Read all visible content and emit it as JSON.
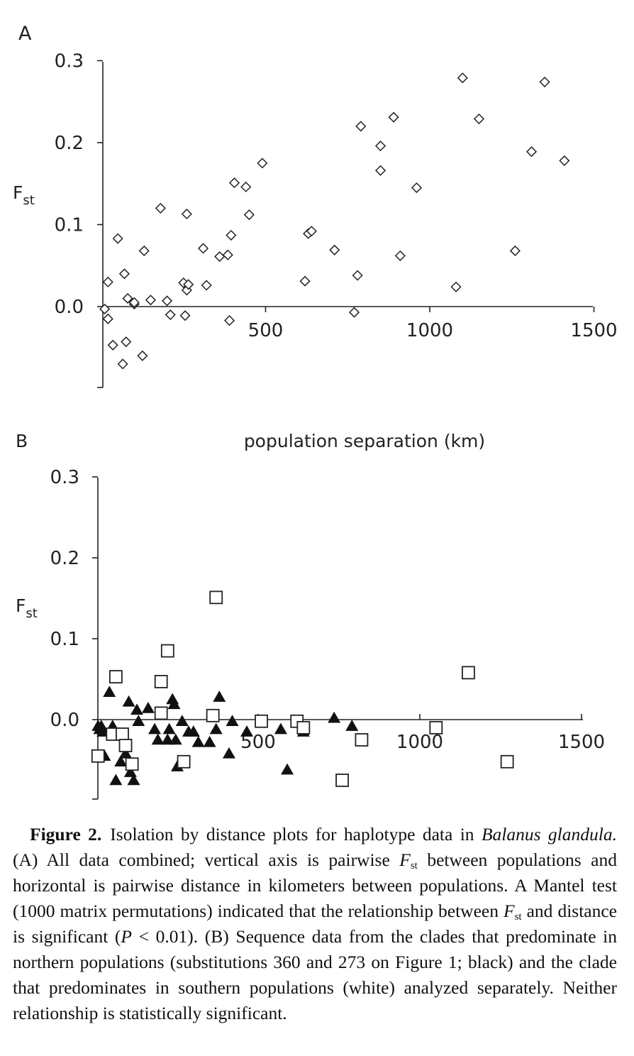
{
  "chart_data": [
    {
      "type": "scatter",
      "panel_label": "A",
      "ylabel": "F",
      "ylabel_sub": "st",
      "xlabel": "population separation (km)",
      "xlim": [
        -40,
        1500
      ],
      "ylim": [
        -0.1,
        0.3
      ],
      "yticks": [
        "0.3",
        "0.2",
        "0.1",
        "0.0"
      ],
      "xticks": [
        "500",
        "1000",
        "1500"
      ],
      "series": [
        {
          "marker": "diamond",
          "points": [
            [
              10,
              -0.003
            ],
            [
              20,
              -0.015
            ],
            [
              20,
              0.03
            ],
            [
              35,
              -0.047
            ],
            [
              50,
              0.083
            ],
            [
              65,
              -0.07
            ],
            [
              70,
              0.04
            ],
            [
              75,
              -0.043
            ],
            [
              80,
              0.01
            ],
            [
              100,
              0.003
            ],
            [
              100,
              0.005
            ],
            [
              125,
              -0.06
            ],
            [
              130,
              0.068
            ],
            [
              150,
              0.008
            ],
            [
              180,
              0.12
            ],
            [
              200,
              0.007
            ],
            [
              210,
              -0.01
            ],
            [
              250,
              0.029
            ],
            [
              255,
              -0.011
            ],
            [
              260,
              0.113
            ],
            [
              260,
              0.02
            ],
            [
              265,
              0.027
            ],
            [
              310,
              0.071
            ],
            [
              320,
              0.026
            ],
            [
              360,
              0.061
            ],
            [
              385,
              0.063
            ],
            [
              390,
              -0.017
            ],
            [
              395,
              0.087
            ],
            [
              405,
              0.151
            ],
            [
              440,
              0.146
            ],
            [
              450,
              0.112
            ],
            [
              490,
              0.175
            ],
            [
              620,
              0.031
            ],
            [
              630,
              0.089
            ],
            [
              640,
              0.092
            ],
            [
              710,
              0.069
            ],
            [
              770,
              -0.007
            ],
            [
              780,
              0.038
            ],
            [
              790,
              0.22
            ],
            [
              850,
              0.166
            ],
            [
              850,
              0.196
            ],
            [
              890,
              0.231
            ],
            [
              910,
              0.062
            ],
            [
              960,
              0.145
            ],
            [
              1080,
              0.024
            ],
            [
              1100,
              0.279
            ],
            [
              1150,
              0.229
            ],
            [
              1260,
              0.068
            ],
            [
              1310,
              0.189
            ],
            [
              1350,
              0.274
            ],
            [
              1410,
              0.178
            ]
          ]
        }
      ]
    },
    {
      "type": "scatter",
      "panel_label": "B",
      "ylabel": "F",
      "ylabel_sub": "st",
      "xlim": [
        -40,
        1500
      ],
      "ylim": [
        -0.1,
        0.3
      ],
      "yticks": [
        "0.3",
        "0.2",
        "0.1",
        "0.0"
      ],
      "xticks": [
        "500",
        "1000",
        "1500"
      ],
      "series": [
        {
          "name": "northern clades (black)",
          "marker": "filled-triangle",
          "points": [
            [
              5,
              -0.008
            ],
            [
              10,
              -0.012
            ],
            [
              15,
              -0.008
            ],
            [
              20,
              -0.015
            ],
            [
              25,
              -0.045
            ],
            [
              40,
              0.034
            ],
            [
              50,
              -0.008
            ],
            [
              60,
              -0.075
            ],
            [
              75,
              -0.052
            ],
            [
              90,
              -0.042
            ],
            [
              100,
              0.022
            ],
            [
              105,
              -0.065
            ],
            [
              115,
              -0.075
            ],
            [
              125,
              0.012
            ],
            [
              130,
              -0.002
            ],
            [
              160,
              0.014
            ],
            [
              180,
              -0.012
            ],
            [
              190,
              -0.025
            ],
            [
              220,
              -0.025
            ],
            [
              225,
              -0.012
            ],
            [
              235,
              0.025
            ],
            [
              240,
              0.019
            ],
            [
              245,
              -0.025
            ],
            [
              250,
              -0.058
            ],
            [
              265,
              -0.002
            ],
            [
              285,
              -0.015
            ],
            [
              300,
              -0.015
            ],
            [
              315,
              -0.028
            ],
            [
              350,
              -0.028
            ],
            [
              370,
              -0.012
            ],
            [
              380,
              0.028
            ],
            [
              410,
              -0.042
            ],
            [
              420,
              -0.002
            ],
            [
              465,
              -0.015
            ],
            [
              570,
              -0.012
            ],
            [
              590,
              -0.062
            ],
            [
              640,
              -0.015
            ],
            [
              735,
              0.002
            ],
            [
              790,
              -0.008
            ]
          ]
        },
        {
          "name": "southern clade (white)",
          "marker": "open-square",
          "points": [
            [
              5,
              -0.045
            ],
            [
              50,
              -0.018
            ],
            [
              60,
              0.053
            ],
            [
              80,
              -0.018
            ],
            [
              90,
              -0.032
            ],
            [
              110,
              -0.055
            ],
            [
              200,
              0.047
            ],
            [
              200,
              0.008
            ],
            [
              220,
              0.085
            ],
            [
              270,
              -0.052
            ],
            [
              360,
              0.005
            ],
            [
              370,
              0.151
            ],
            [
              510,
              -0.002
            ],
            [
              620,
              -0.002
            ],
            [
              640,
              -0.01
            ],
            [
              760,
              -0.075
            ],
            [
              820,
              -0.025
            ],
            [
              1050,
              -0.01
            ],
            [
              1150,
              0.058
            ],
            [
              1270,
              -0.052
            ]
          ]
        }
      ]
    }
  ],
  "caption": {
    "figure_label": "Figure 2.",
    "part1": "Isolation by distance plots for haplotype data in ",
    "species": "Balanus glandula.",
    "part2": " (A) All data combined; vertical axis is pairwise ",
    "fst_symbol": "F",
    "fst_sub": "st",
    "part3": " between populations and horizontal is pairwise distance in kilometers between populations. A Mantel test (1000 matrix permutations) indicated that the relationship between ",
    "part4": " and distance is significant (",
    "p_symbol": "P",
    "part5": " < 0.01). (B) Se­quence data from the clades that predominate in northern populations (substitutions 360 and 273 on Figure 1; black) and the clade that predom­inates in southern populations (white) analyzed separately. Neither rela­tionship is statistically significant."
  }
}
